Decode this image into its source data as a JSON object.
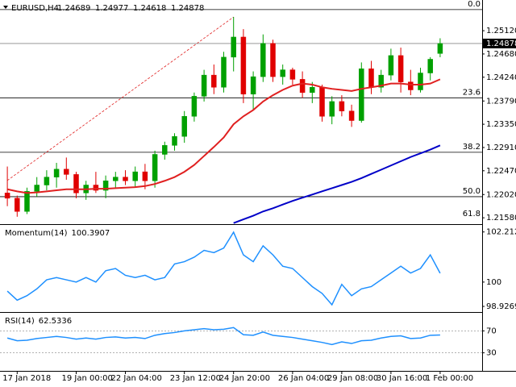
{
  "chart_data": {
    "type": "candlestick",
    "title": "EURUSD,H4",
    "categories": [
      null,
      "17 Jan 2018",
      null,
      null,
      null,
      null,
      null,
      "19 Jan 00:00",
      null,
      null,
      null,
      null,
      "22 Jan 04:00",
      null,
      null,
      null,
      null,
      null,
      "23 Jan 12:00",
      null,
      null,
      null,
      null,
      "24 Jan 20:00",
      null,
      null,
      null,
      null,
      null,
      "26 Jan 04:00",
      null,
      null,
      null,
      null,
      "29 Jan 08:00",
      null,
      null,
      null,
      null,
      "30 Jan 16:00",
      null,
      null,
      null,
      null,
      "1 Feb 00:00"
    ],
    "open": [
      1.2205,
      1.2195,
      1.217,
      1.2208,
      1.222,
      1.2235,
      1.225,
      1.224,
      1.2205,
      1.222,
      1.221,
      1.2228,
      1.2235,
      1.2228,
      1.2245,
      1.2228,
      1.2278,
      1.2295,
      1.2312,
      1.235,
      1.2388,
      1.2428,
      1.2405,
      1.2462,
      1.25,
      1.2392,
      1.2425,
      1.2488,
      1.2425,
      1.2438,
      1.242,
      1.2395,
      1.2405,
      1.235,
      1.2378,
      1.236,
      1.2342,
      1.244,
      1.2405,
      1.2428,
      1.2465,
      1.2415,
      1.24,
      1.2432,
      1.24689
    ],
    "high": [
      1.2255,
      1.22,
      1.2215,
      1.2235,
      1.2248,
      1.2262,
      1.2272,
      1.2245,
      1.2228,
      1.2245,
      1.2238,
      1.2245,
      1.2248,
      1.2255,
      1.226,
      1.2285,
      1.2302,
      1.2318,
      1.236,
      1.2395,
      1.2438,
      1.2448,
      1.2472,
      1.2538,
      1.2515,
      1.2435,
      1.2505,
      1.2495,
      1.2448,
      1.2442,
      1.2435,
      1.2415,
      1.241,
      1.2388,
      1.239,
      1.2372,
      1.2452,
      1.2455,
      1.2438,
      1.2478,
      1.248,
      1.2438,
      1.2442,
      1.2462,
      1.24977
    ],
    "low": [
      1.218,
      1.216,
      1.2165,
      1.2198,
      1.221,
      1.2215,
      1.223,
      1.2195,
      1.2192,
      1.2205,
      1.2195,
      1.2215,
      1.222,
      1.2215,
      1.2212,
      1.2215,
      1.2268,
      1.2285,
      1.23,
      1.234,
      1.2378,
      1.2392,
      1.2395,
      1.2435,
      1.2375,
      1.2362,
      1.2415,
      1.2415,
      1.241,
      1.241,
      1.2385,
      1.2375,
      1.234,
      1.2335,
      1.235,
      1.233,
      1.2338,
      1.2392,
      1.2395,
      1.2418,
      1.2395,
      1.239,
      1.2395,
      1.2418,
      1.24618
    ],
    "close": [
      1.2195,
      1.217,
      1.2208,
      1.222,
      1.2235,
      1.225,
      1.224,
      1.2205,
      1.222,
      1.221,
      1.2228,
      1.2235,
      1.2228,
      1.2245,
      1.2228,
      1.2278,
      1.2295,
      1.2312,
      1.235,
      1.2388,
      1.2428,
      1.2405,
      1.2462,
      1.25,
      1.2392,
      1.2425,
      1.2488,
      1.2425,
      1.2438,
      1.242,
      1.2395,
      1.2405,
      1.235,
      1.2378,
      1.236,
      1.2342,
      1.244,
      1.2405,
      1.2428,
      1.2465,
      1.2415,
      1.24,
      1.2432,
      1.2458,
      1.24878
    ],
    "up_color": "#00a000",
    "down_color": "#e00000",
    "ylim": [
      1.2146,
      1.2564
    ],
    "yticks": [
      {
        "value": 1.2512,
        "label": "1.25120"
      },
      {
        "value": 1.2468,
        "label": "1.24680"
      },
      {
        "value": 1.2424,
        "label": "1.24240"
      },
      {
        "value": 1.2379,
        "label": "1.23790"
      },
      {
        "value": 1.2335,
        "label": "1.23350"
      },
      {
        "value": 1.2291,
        "label": "1.22910"
      },
      {
        "value": 1.2247,
        "label": "1.22470"
      },
      {
        "value": 1.2202,
        "label": "1.22020"
      },
      {
        "value": 1.2158,
        "label": "1.21580"
      }
    ],
    "overlays": [
      {
        "color": "#e02020",
        "values": [
          1.2212,
          1.2208,
          1.2205,
          1.2206,
          1.2208,
          1.221,
          1.2212,
          1.2212,
          1.2212,
          1.2213,
          1.2213,
          1.2214,
          1.2215,
          1.2216,
          1.2218,
          1.2222,
          1.2228,
          1.2235,
          1.2245,
          1.2258,
          1.2275,
          1.2292,
          1.231,
          1.2335,
          1.235,
          1.2362,
          1.2378,
          1.239,
          1.24,
          1.2408,
          1.2412,
          1.241,
          1.2405,
          1.2402,
          1.24,
          1.2398,
          1.2402,
          1.2405,
          1.2408,
          1.2412,
          1.2412,
          1.241,
          1.241,
          1.2412,
          1.242
        ]
      },
      {
        "color": "#0000c8",
        "values": [
          null,
          null,
          null,
          null,
          null,
          null,
          null,
          null,
          null,
          null,
          null,
          null,
          null,
          null,
          null,
          null,
          null,
          null,
          null,
          null,
          null,
          null,
          null,
          1.2148,
          1.2155,
          1.2162,
          1.217,
          1.2176,
          1.2183,
          1.219,
          1.2196,
          1.2202,
          1.2208,
          1.2214,
          1.222,
          1.2226,
          1.2233,
          1.2241,
          1.2249,
          1.2257,
          1.2265,
          1.2273,
          1.228,
          1.2287,
          1.2295
        ]
      }
    ],
    "fib_color": "#e02020",
    "fib_levels": [
      {
        "value": 1.2552,
        "label": "0.0"
      },
      {
        "value": 1.2385,
        "label": "23.6"
      },
      {
        "value": 1.2282,
        "label": "38.2"
      },
      {
        "value": 1.2198,
        "label": "50.0"
      },
      {
        "value": 1.2114,
        "label": "61.8"
      }
    ],
    "indicators": [
      {
        "name": "Momentum(14)",
        "color": "#1e90ff",
        "ylim": [
          98.75,
          102.45
        ],
        "yticks": [
          102.212,
          100,
          98.9269
        ],
        "values": [
          99.6,
          99.2,
          99.4,
          99.7,
          100.1,
          100.2,
          100.1,
          100.0,
          100.2,
          100.0,
          100.5,
          100.6,
          100.3,
          100.2,
          100.3,
          100.1,
          100.2,
          100.8,
          100.9,
          101.1,
          101.4,
          101.3,
          101.5,
          102.2,
          101.2,
          100.9,
          101.6,
          101.2,
          100.7,
          100.6,
          100.2,
          99.8,
          99.5,
          99.0,
          99.9,
          99.4,
          99.7,
          99.8,
          100.1,
          100.4,
          100.7,
          100.4,
          100.6,
          101.2,
          100.3907
        ]
      },
      {
        "name": "RSI(14)",
        "color": "#1e90ff",
        "ylim": [
          0,
          100
        ],
        "yticks": [
          70,
          30
        ],
        "values": [
          57,
          52,
          53,
          56,
          58,
          60,
          58,
          55,
          57,
          55,
          58,
          59,
          57,
          58,
          56,
          62,
          65,
          67,
          70,
          72,
          74,
          72,
          73,
          76,
          63,
          62,
          68,
          62,
          60,
          58,
          55,
          52,
          49,
          45,
          50,
          47,
          52,
          53,
          57,
          60,
          61,
          56,
          57,
          62,
          62.5336
        ]
      }
    ]
  }
}
